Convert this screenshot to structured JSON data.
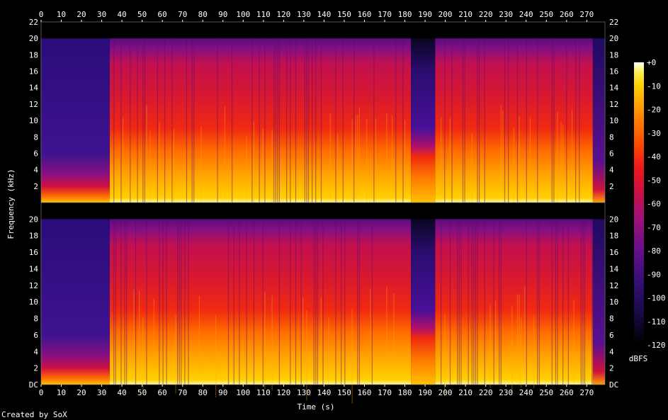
{
  "chart_data": {
    "type": "heatmap",
    "xlabel": "Time (s)",
    "ylabel": "Frequency (kHz)",
    "footer": "Created by SoX",
    "colorbar_label": "dBFS",
    "xlim": [
      0,
      279
    ],
    "ylim": [
      0,
      22
    ],
    "x_ticks": [
      0,
      10,
      20,
      30,
      40,
      50,
      60,
      70,
      80,
      90,
      100,
      110,
      120,
      130,
      140,
      150,
      160,
      170,
      180,
      190,
      200,
      210,
      220,
      230,
      240,
      250,
      260,
      270
    ],
    "y_ticks_top": [
      "2",
      "4",
      "6",
      "8",
      "10",
      "12",
      "14",
      "16",
      "18",
      "20",
      "22"
    ],
    "y_ticks_bottom": [
      "DC",
      "2",
      "4",
      "6",
      "8",
      "10",
      "12",
      "14",
      "16",
      "18",
      "20"
    ],
    "y_tick_values_top": [
      2,
      4,
      6,
      8,
      10,
      12,
      14,
      16,
      18,
      20,
      22
    ],
    "y_tick_values_bottom": [
      0,
      2,
      4,
      6,
      8,
      10,
      12,
      14,
      16,
      18,
      20
    ],
    "colorbar_ticks": [
      "+0",
      "-10",
      "-20",
      "-30",
      "-40",
      "-50",
      "-60",
      "-70",
      "-80",
      "-90",
      "-100",
      "-110",
      "-120"
    ],
    "colorbar_range": [
      -120,
      0
    ],
    "channels": [
      {
        "segments": [
          {
            "t0": 0,
            "t1": 34,
            "kind": "quiet",
            "max_khz": 3.5
          },
          {
            "t0": 34,
            "t1": 183,
            "kind": "loud",
            "max_khz": 20
          },
          {
            "t0": 183,
            "t1": 195,
            "kind": "gap",
            "max_khz": 7
          },
          {
            "t0": 195,
            "t1": 273,
            "kind": "loud",
            "max_khz": 20
          },
          {
            "t0": 273,
            "t1": 279,
            "kind": "fade",
            "max_khz": 3
          }
        ]
      },
      {
        "segments": [
          {
            "t0": 0,
            "t1": 34,
            "kind": "quiet",
            "max_khz": 3.5
          },
          {
            "t0": 34,
            "t1": 183,
            "kind": "loud",
            "max_khz": 20
          },
          {
            "t0": 183,
            "t1": 195,
            "kind": "gap",
            "max_khz": 7
          },
          {
            "t0": 195,
            "t1": 273,
            "kind": "loud",
            "max_khz": 20
          },
          {
            "t0": 273,
            "t1": 279,
            "kind": "fade",
            "max_khz": 3
          }
        ]
      }
    ],
    "palette": [
      "#000000",
      "#1a0a4a",
      "#3b0f7a",
      "#6a0f8a",
      "#a0107a",
      "#d01040",
      "#f01818",
      "#ff4a00",
      "#ff7a00",
      "#ffa800",
      "#ffd000",
      "#fff060",
      "#ffffff"
    ]
  }
}
